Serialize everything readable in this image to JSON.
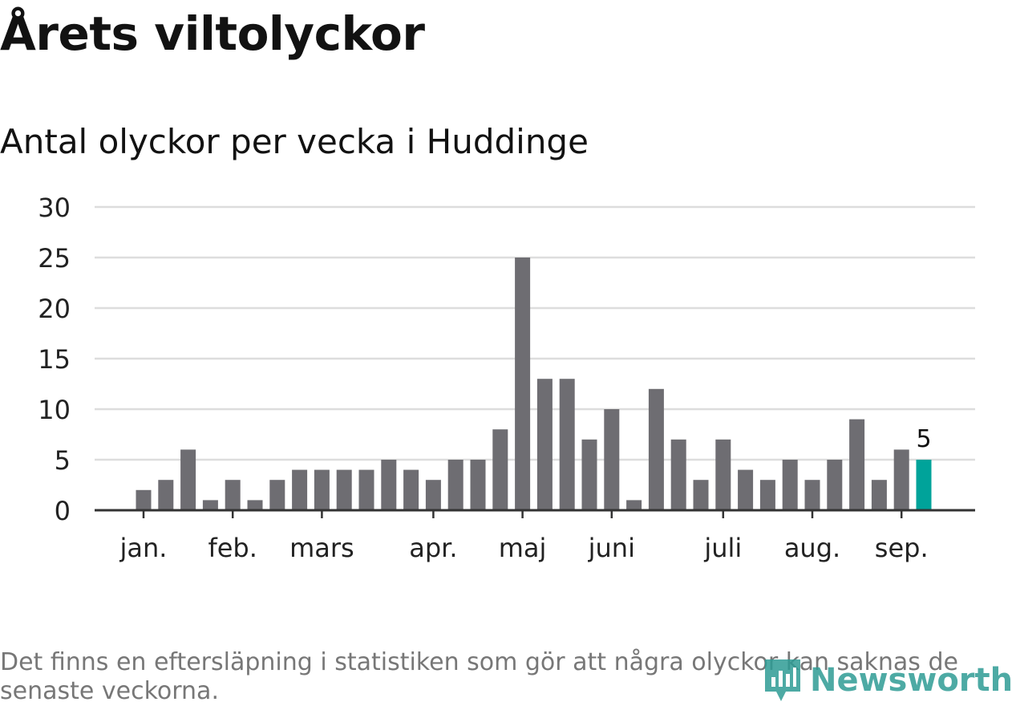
{
  "header": {
    "title": "Årets viltolyckor",
    "subtitle": "Antal olyckor per vecka i Huddinge"
  },
  "footer": {
    "note": "Det finns en eftersläpning i statistiken som gör att några olyckor kan saknas de senaste veckorna.",
    "brand": "Newsworthy"
  },
  "colors": {
    "bar": "#6e6d72",
    "highlight": "#00a39a",
    "grid": "#dddddd",
    "axis": "#333333",
    "text": "#222222"
  },
  "chart_data": {
    "type": "bar",
    "title": "Årets viltolyckor",
    "subtitle": "Antal olyckor per vecka i Huddinge",
    "ylim": [
      0,
      30
    ],
    "yticks": [
      0,
      5,
      10,
      15,
      20,
      25,
      30
    ],
    "grid": true,
    "x_month_labels": [
      {
        "label": "jan.",
        "week": 1
      },
      {
        "label": "feb.",
        "week": 5
      },
      {
        "label": "mars",
        "week": 9
      },
      {
        "label": "apr.",
        "week": 14
      },
      {
        "label": "maj",
        "week": 18
      },
      {
        "label": "juni",
        "week": 22
      },
      {
        "label": "juli",
        "week": 27
      },
      {
        "label": "aug.",
        "week": 31
      },
      {
        "label": "sep.",
        "week": 35
      }
    ],
    "values": [
      2,
      3,
      6,
      1,
      3,
      1,
      3,
      4,
      4,
      4,
      4,
      5,
      4,
      3,
      5,
      5,
      8,
      25,
      13,
      13,
      7,
      10,
      1,
      12,
      7,
      3,
      7,
      4,
      3,
      5,
      3,
      5,
      9,
      3,
      6,
      5
    ],
    "highlight_index": 35,
    "highlight_label": "5"
  }
}
